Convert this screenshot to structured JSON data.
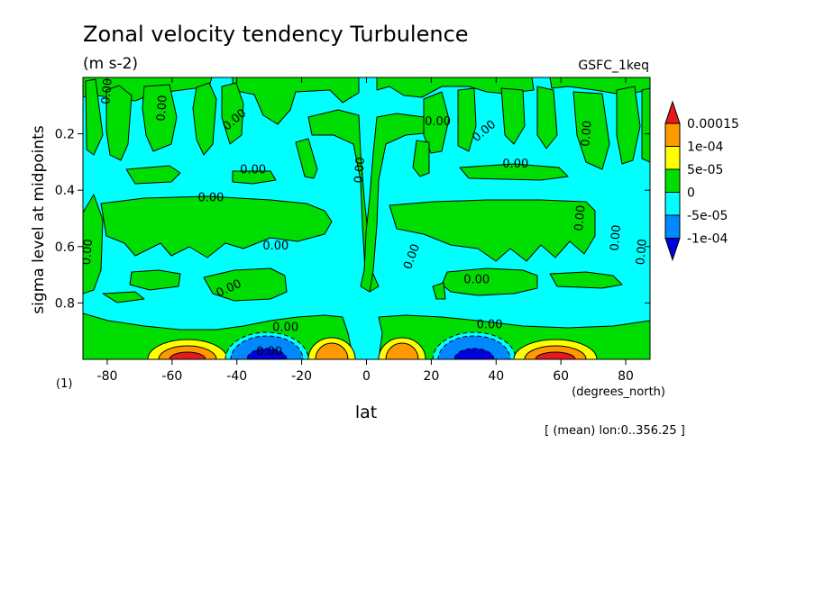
{
  "header": {
    "title": "Zonal velocity tendency Turbulence",
    "units": "(m s-2)",
    "source": "GSFC_1keq",
    "left_note": "(1)",
    "x_unit": "(degrees_north)",
    "mean_note": "[ (mean) lon:0..356.25 ]"
  },
  "chart_data": {
    "type": "heatmap",
    "xlabel": "lat",
    "ylabel": "sigma level at midpoints",
    "xlim": [
      -87.5,
      87.5
    ],
    "ylim": [
      1.0,
      0.0
    ],
    "x_ticks": [
      -80,
      -60,
      -40,
      -20,
      0,
      20,
      40,
      60,
      80
    ],
    "x_tick_labels": [
      "-80",
      "-60",
      "-40",
      "-20",
      "0",
      "20",
      "40",
      "60",
      "80"
    ],
    "y_ticks": [
      0.2,
      0.4,
      0.6,
      0.8
    ],
    "y_tick_labels": [
      "0.2",
      "0.4",
      "0.6",
      "0.8"
    ],
    "background_class": "-5e-05 to 0",
    "colorbar": {
      "labels": [
        "0.00015",
        "1e-04",
        "5e-05",
        "0",
        "-5e-05",
        "-1e-04"
      ],
      "colors": [
        "#e61a1a",
        "#ff9900",
        "#ffff00",
        "#00dd00",
        "#00ffff",
        "#0088ff",
        "#0000dd"
      ]
    },
    "contour_labels": [
      {
        "text": "0.00",
        "lat": -79,
        "sigma": 0.05,
        "rotate": -85
      },
      {
        "text": "0.00",
        "lat": -62,
        "sigma": 0.11,
        "rotate": -85
      },
      {
        "text": "0.00",
        "lat": -40,
        "sigma": 0.16,
        "rotate": -40
      },
      {
        "text": "0.00",
        "lat": -35,
        "sigma": 0.34,
        "rotate": 0
      },
      {
        "text": "0.00",
        "lat": -48,
        "sigma": 0.44,
        "rotate": 0
      },
      {
        "text": "0.00",
        "lat": -28,
        "sigma": 0.61,
        "rotate": 0
      },
      {
        "text": "0.00",
        "lat": -85,
        "sigma": 0.62,
        "rotate": -85
      },
      {
        "text": "0.00",
        "lat": -42,
        "sigma": 0.76,
        "rotate": -25
      },
      {
        "text": "0.00",
        "lat": -25,
        "sigma": 0.9,
        "rotate": 0
      },
      {
        "text": "0.00",
        "lat": -30,
        "sigma": 0.985,
        "rotate": 0
      },
      {
        "text": "0.00",
        "lat": -1,
        "sigma": 0.33,
        "rotate": -85
      },
      {
        "text": "0.00",
        "lat": 15,
        "sigma": 0.64,
        "rotate": -70
      },
      {
        "text": "0.00",
        "lat": 22,
        "sigma": 0.17,
        "rotate": 0
      },
      {
        "text": "0.00",
        "lat": 37,
        "sigma": 0.2,
        "rotate": -40
      },
      {
        "text": "0.00",
        "lat": 46,
        "sigma": 0.32,
        "rotate": 0
      },
      {
        "text": "0.00",
        "lat": 34,
        "sigma": 0.73,
        "rotate": 0
      },
      {
        "text": "0.00",
        "lat": 38,
        "sigma": 0.89,
        "rotate": 0
      },
      {
        "text": "0.00",
        "lat": 69,
        "sigma": 0.2,
        "rotate": -85
      },
      {
        "text": "0.00",
        "lat": 67,
        "sigma": 0.5,
        "rotate": -85
      },
      {
        "text": "0.00",
        "lat": 78,
        "sigma": 0.57,
        "rotate": -85
      },
      {
        "text": "0.00",
        "lat": 86,
        "sigma": 0.62,
        "rotate": -85
      }
    ]
  }
}
